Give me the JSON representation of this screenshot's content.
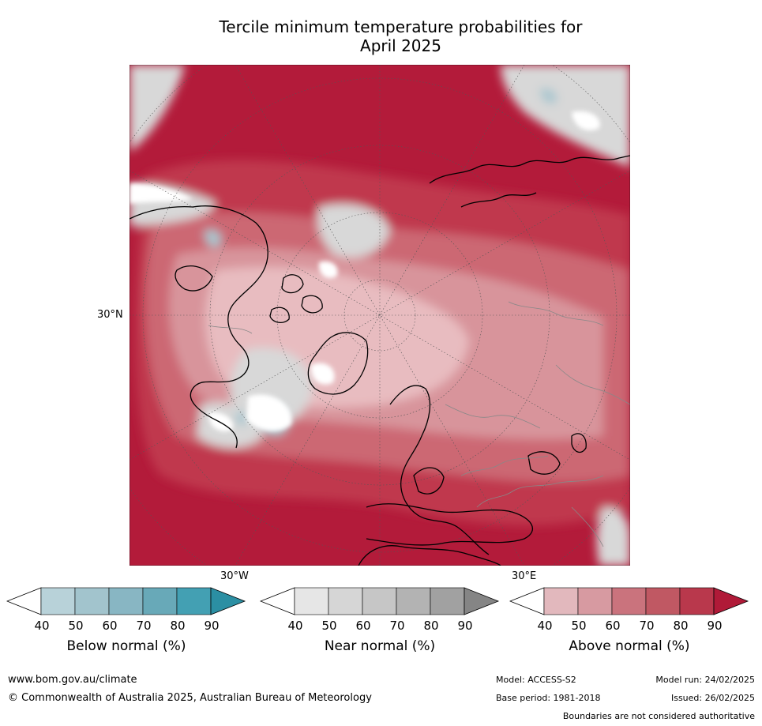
{
  "title_line1": "Tercile minimum temperature probabilities for",
  "title_line2": "April 2025",
  "map": {
    "lat_label": "30°N",
    "lon_label_left": "30°W",
    "lon_label_right": "30°E",
    "colors": {
      "above_90": "#b31b3a",
      "above_80": "#c0394e",
      "above_70": "#cc6773",
      "above_60": "#d8949b",
      "above_50": "#e8bcc0",
      "near_50": "#d8d8d8",
      "below_50": "#a7c6cf",
      "coast": "#000000",
      "borders": "#888888"
    }
  },
  "colorbars": [
    {
      "title": "Below normal (%)",
      "ticks": [
        "40",
        "50",
        "60",
        "70",
        "80",
        "90"
      ],
      "colors": [
        "#ffffff",
        "#b8d2d9",
        "#a2c4cd",
        "#88b6c3",
        "#68a9b8",
        "#43a0b3",
        "#2b8fa3"
      ]
    },
    {
      "title": "Near normal (%)",
      "ticks": [
        "40",
        "50",
        "60",
        "70",
        "80",
        "90"
      ],
      "colors": [
        "#ffffff",
        "#e6e6e6",
        "#d6d6d6",
        "#c6c6c6",
        "#b3b3b3",
        "#a1a1a1",
        "#858585"
      ]
    },
    {
      "title": "Above normal (%)",
      "ticks": [
        "40",
        "50",
        "60",
        "70",
        "80",
        "90"
      ],
      "colors": [
        "#ffffff",
        "#e2b8bd",
        "#d79aa1",
        "#ca737d",
        "#c05863",
        "#b9384c",
        "#b01a38"
      ]
    }
  ],
  "footer": {
    "website": "www.bom.gov.au/climate",
    "copyright": "© Commonwealth of Australia 2025, Australian Bureau of Meteorology",
    "model": "Model: ACCESS-S2",
    "base_period": "Base period: 1981-2018",
    "model_run": "Model run: 24/02/2025",
    "issued": "Issued: 26/02/2025",
    "disclaimer": "Boundaries are not considered authoritative"
  }
}
